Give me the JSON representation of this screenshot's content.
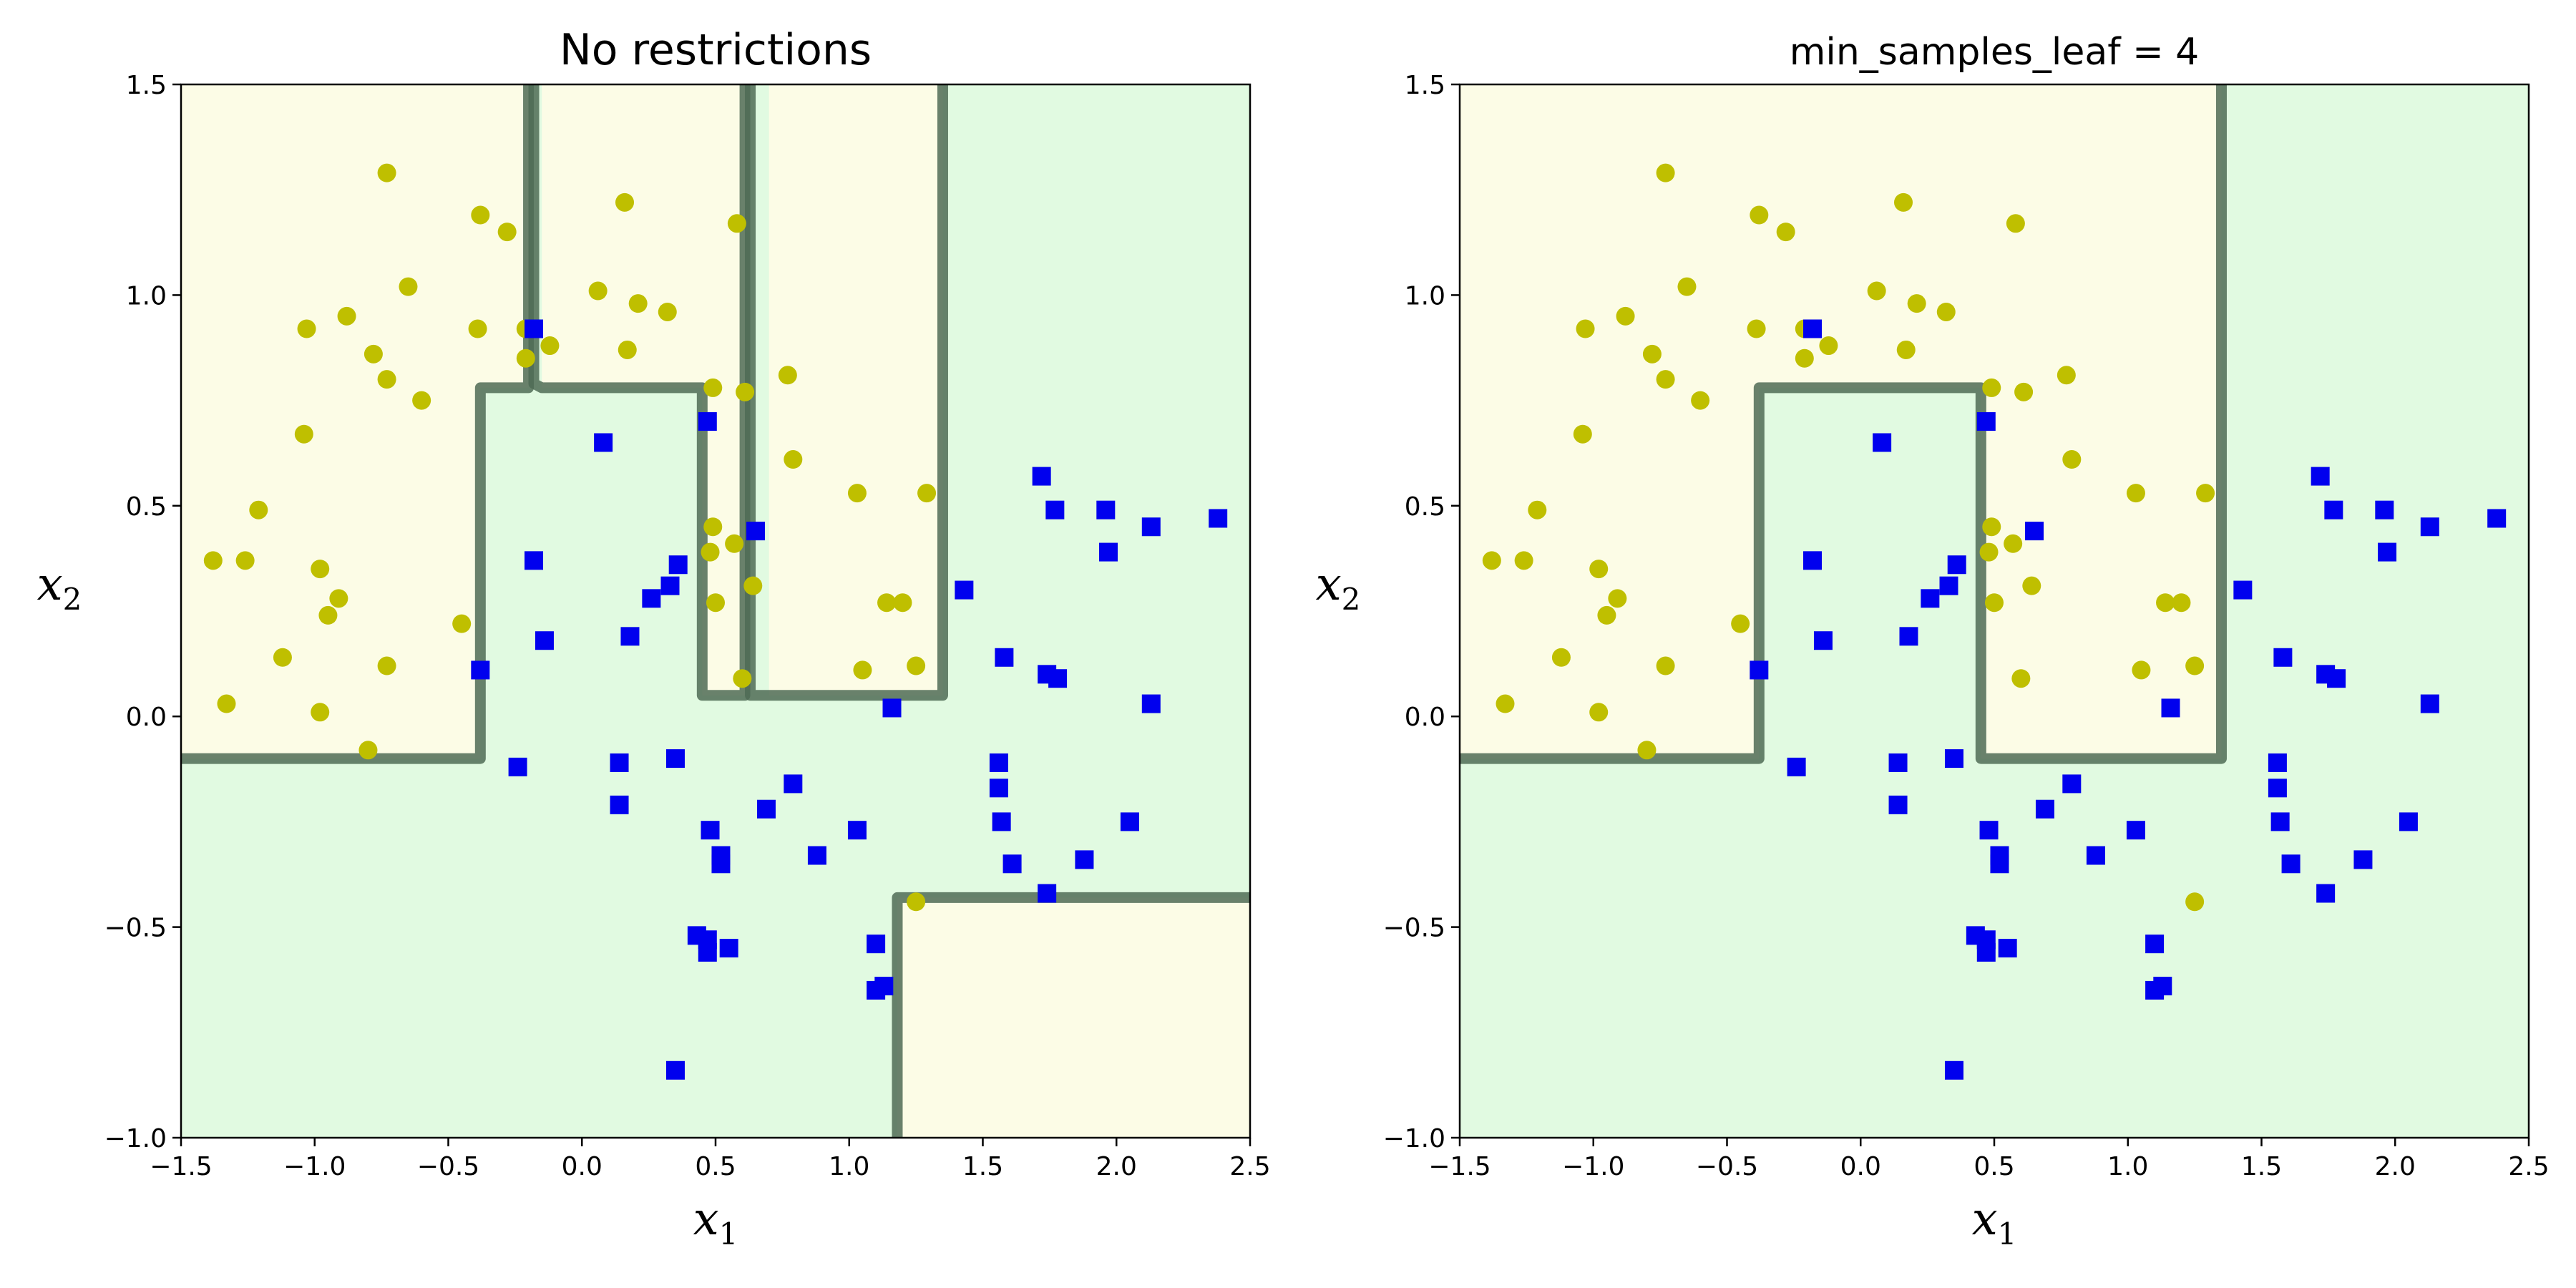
{
  "colors": {
    "region_class0": "#fcfce6",
    "region_class1": "#e1fae1",
    "boundary": "#4f6b55",
    "class0_marker": "#bfbf00",
    "class1_marker": "#0000ee",
    "axes": "#000000"
  },
  "chart_data": [
    {
      "type": "scatter",
      "title": "No restrictions",
      "xlabel": "x1",
      "ylabel": "x2",
      "xlim": [
        -1.5,
        2.5
      ],
      "ylim": [
        -1.0,
        1.5
      ],
      "xticks": [
        "−1.5",
        "−1.0",
        "−0.5",
        "0.0",
        "0.5",
        "1.0",
        "1.5",
        "2.0",
        "2.5"
      ],
      "yticks": [
        "−1.0",
        "−0.5",
        "0.0",
        "0.5",
        "1.0",
        "1.5"
      ],
      "grid": false,
      "decision_regions_class0": [
        [
          [
            -1.5,
            -0.1
          ],
          [
            -0.38,
            -0.1
          ],
          [
            -0.38,
            0.78
          ],
          [
            -0.2,
            0.78
          ],
          [
            -0.2,
            1.5
          ],
          [
            -1.5,
            1.5
          ]
        ],
        [
          [
            -0.15,
            0.78
          ],
          [
            0.45,
            0.78
          ],
          [
            0.45,
            0.05
          ],
          [
            0.61,
            0.05
          ],
          [
            0.61,
            1.5
          ],
          [
            -0.15,
            1.5
          ]
        ],
        [
          [
            0.7,
            0.05
          ],
          [
            1.35,
            0.05
          ],
          [
            1.35,
            1.5
          ],
          [
            0.7,
            1.5
          ]
        ],
        [
          [
            1.18,
            -1.0
          ],
          [
            1.18,
            -0.43
          ],
          [
            2.5,
            -0.43
          ],
          [
            2.5,
            -1.0
          ]
        ]
      ],
      "decision_boundaries": [
        [
          [
            -1.5,
            -0.1
          ],
          [
            -0.38,
            -0.1
          ],
          [
            -0.38,
            0.78
          ],
          [
            -0.2,
            0.78
          ],
          [
            -0.2,
            1.5
          ]
        ],
        [
          [
            -0.18,
            1.5
          ],
          [
            -0.18,
            0.79
          ],
          [
            -0.15,
            0.78
          ],
          [
            0.45,
            0.78
          ],
          [
            0.45,
            0.05
          ],
          [
            0.61,
            0.05
          ],
          [
            0.61,
            1.5
          ]
        ],
        [
          [
            0.63,
            1.5
          ],
          [
            0.63,
            0.05
          ],
          [
            1.35,
            0.05
          ],
          [
            1.35,
            1.5
          ]
        ],
        [
          [
            1.18,
            -1.0
          ],
          [
            1.18,
            -0.43
          ],
          [
            2.5,
            -0.43
          ]
        ]
      ],
      "series": [
        {
          "marker": "circle",
          "points": [
            [
              -0.73,
              1.29
            ],
            [
              -0.38,
              1.19
            ],
            [
              -0.28,
              1.15
            ],
            [
              -0.65,
              1.02
            ],
            [
              -0.88,
              0.95
            ],
            [
              -1.03,
              0.92
            ],
            [
              -0.39,
              0.92
            ],
            [
              -0.21,
              0.92
            ],
            [
              -0.78,
              0.86
            ],
            [
              -0.73,
              0.8
            ],
            [
              -0.6,
              0.75
            ],
            [
              -1.04,
              0.67
            ],
            [
              -1.21,
              0.49
            ],
            [
              -1.38,
              0.37
            ],
            [
              -1.26,
              0.37
            ],
            [
              -0.98,
              0.35
            ],
            [
              -0.91,
              0.28
            ],
            [
              -0.95,
              0.24
            ],
            [
              -0.45,
              0.22
            ],
            [
              -1.12,
              0.14
            ],
            [
              -0.73,
              0.12
            ],
            [
              -1.33,
              0.03
            ],
            [
              -0.98,
              0.01
            ],
            [
              -0.8,
              -0.08
            ],
            [
              -0.21,
              0.85
            ],
            [
              -0.12,
              0.88
            ],
            [
              0.06,
              1.01
            ],
            [
              0.16,
              1.22
            ],
            [
              0.21,
              0.98
            ],
            [
              0.32,
              0.96
            ],
            [
              0.17,
              0.87
            ],
            [
              0.58,
              1.17
            ],
            [
              0.49,
              0.78
            ],
            [
              0.61,
              0.77
            ],
            [
              0.77,
              0.81
            ],
            [
              0.79,
              0.61
            ],
            [
              0.49,
              0.45
            ],
            [
              0.57,
              0.41
            ],
            [
              0.48,
              0.39
            ],
            [
              0.64,
              0.31
            ],
            [
              0.5,
              0.27
            ],
            [
              0.6,
              0.09
            ],
            [
              1.03,
              0.53
            ],
            [
              1.29,
              0.53
            ],
            [
              1.14,
              0.27
            ],
            [
              1.2,
              0.27
            ],
            [
              1.05,
              0.11
            ],
            [
              1.25,
              0.12
            ],
            [
              1.25,
              -0.44
            ]
          ]
        },
        {
          "marker": "square",
          "points": [
            [
              -0.18,
              0.92
            ],
            [
              0.08,
              0.65
            ],
            [
              0.47,
              0.7
            ],
            [
              -0.18,
              0.37
            ],
            [
              -0.14,
              0.18
            ],
            [
              0.18,
              0.19
            ],
            [
              0.26,
              0.28
            ],
            [
              0.33,
              0.31
            ],
            [
              0.36,
              0.36
            ],
            [
              0.65,
              0.44
            ],
            [
              1.43,
              0.3
            ],
            [
              1.58,
              0.14
            ],
            [
              1.72,
              0.57
            ],
            [
              1.77,
              0.49
            ],
            [
              1.96,
              0.49
            ],
            [
              1.97,
              0.39
            ],
            [
              2.13,
              0.45
            ],
            [
              2.38,
              0.47
            ],
            [
              -0.38,
              0.11
            ],
            [
              1.74,
              0.1
            ],
            [
              1.78,
              0.09
            ],
            [
              1.16,
              0.02
            ],
            [
              2.13,
              0.03
            ],
            [
              -0.24,
              -0.12
            ],
            [
              0.14,
              -0.11
            ],
            [
              0.35,
              -0.1
            ],
            [
              1.56,
              -0.11
            ],
            [
              1.56,
              -0.17
            ],
            [
              0.79,
              -0.16
            ],
            [
              0.14,
              -0.21
            ],
            [
              0.69,
              -0.22
            ],
            [
              1.57,
              -0.25
            ],
            [
              2.05,
              -0.25
            ],
            [
              0.48,
              -0.27
            ],
            [
              1.03,
              -0.27
            ],
            [
              0.52,
              -0.33
            ],
            [
              0.52,
              -0.35
            ],
            [
              0.88,
              -0.33
            ],
            [
              1.61,
              -0.35
            ],
            [
              1.88,
              -0.34
            ],
            [
              1.74,
              -0.42
            ],
            [
              0.43,
              -0.52
            ],
            [
              0.47,
              -0.53
            ],
            [
              0.47,
              -0.56
            ],
            [
              0.55,
              -0.55
            ],
            [
              1.1,
              -0.54
            ],
            [
              1.1,
              -0.65
            ],
            [
              1.13,
              -0.64
            ],
            [
              0.35,
              -0.84
            ]
          ]
        }
      ]
    },
    {
      "type": "scatter",
      "title": "min_samples_leaf = 4",
      "xlabel": "x1",
      "ylabel": "x2",
      "xlim": [
        -1.5,
        2.5
      ],
      "ylim": [
        -1.0,
        1.5
      ],
      "xticks": [
        "−1.5",
        "−1.0",
        "−0.5",
        "0.0",
        "0.5",
        "1.0",
        "1.5",
        "2.0",
        "2.5"
      ],
      "yticks": [
        "−1.0",
        "−0.5",
        "0.0",
        "0.5",
        "1.0",
        "1.5"
      ],
      "grid": false,
      "decision_regions_class0": [
        [
          [
            -1.5,
            -0.1
          ],
          [
            -0.38,
            -0.1
          ],
          [
            -0.38,
            0.78
          ],
          [
            0.45,
            0.78
          ],
          [
            0.45,
            -0.1
          ],
          [
            1.35,
            -0.1
          ],
          [
            1.35,
            1.5
          ],
          [
            -1.5,
            1.5
          ]
        ]
      ],
      "decision_boundaries": [
        [
          [
            -1.5,
            -0.1
          ],
          [
            -0.38,
            -0.1
          ],
          [
            -0.38,
            0.78
          ],
          [
            0.45,
            0.78
          ],
          [
            0.45,
            -0.1
          ],
          [
            1.35,
            -0.1
          ],
          [
            1.35,
            1.5
          ]
        ]
      ],
      "series": [
        {
          "marker": "circle",
          "points": [
            [
              -0.73,
              1.29
            ],
            [
              -0.38,
              1.19
            ],
            [
              -0.28,
              1.15
            ],
            [
              -0.65,
              1.02
            ],
            [
              -0.88,
              0.95
            ],
            [
              -1.03,
              0.92
            ],
            [
              -0.39,
              0.92
            ],
            [
              -0.21,
              0.92
            ],
            [
              -0.78,
              0.86
            ],
            [
              -0.73,
              0.8
            ],
            [
              -0.6,
              0.75
            ],
            [
              -1.04,
              0.67
            ],
            [
              -1.21,
              0.49
            ],
            [
              -1.38,
              0.37
            ],
            [
              -1.26,
              0.37
            ],
            [
              -0.98,
              0.35
            ],
            [
              -0.91,
              0.28
            ],
            [
              -0.95,
              0.24
            ],
            [
              -0.45,
              0.22
            ],
            [
              -1.12,
              0.14
            ],
            [
              -0.73,
              0.12
            ],
            [
              -1.33,
              0.03
            ],
            [
              -0.98,
              0.01
            ],
            [
              -0.8,
              -0.08
            ],
            [
              -0.21,
              0.85
            ],
            [
              -0.12,
              0.88
            ],
            [
              0.06,
              1.01
            ],
            [
              0.16,
              1.22
            ],
            [
              0.21,
              0.98
            ],
            [
              0.32,
              0.96
            ],
            [
              0.17,
              0.87
            ],
            [
              0.58,
              1.17
            ],
            [
              0.49,
              0.78
            ],
            [
              0.61,
              0.77
            ],
            [
              0.77,
              0.81
            ],
            [
              0.79,
              0.61
            ],
            [
              0.49,
              0.45
            ],
            [
              0.57,
              0.41
            ],
            [
              0.48,
              0.39
            ],
            [
              0.64,
              0.31
            ],
            [
              0.5,
              0.27
            ],
            [
              0.6,
              0.09
            ],
            [
              1.03,
              0.53
            ],
            [
              1.29,
              0.53
            ],
            [
              1.14,
              0.27
            ],
            [
              1.2,
              0.27
            ],
            [
              1.05,
              0.11
            ],
            [
              1.25,
              0.12
            ],
            [
              1.25,
              -0.44
            ]
          ]
        },
        {
          "marker": "square",
          "points": [
            [
              -0.18,
              0.92
            ],
            [
              0.08,
              0.65
            ],
            [
              0.47,
              0.7
            ],
            [
              -0.18,
              0.37
            ],
            [
              -0.14,
              0.18
            ],
            [
              0.18,
              0.19
            ],
            [
              0.26,
              0.28
            ],
            [
              0.33,
              0.31
            ],
            [
              0.36,
              0.36
            ],
            [
              0.65,
              0.44
            ],
            [
              1.43,
              0.3
            ],
            [
              1.58,
              0.14
            ],
            [
              1.72,
              0.57
            ],
            [
              1.77,
              0.49
            ],
            [
              1.96,
              0.49
            ],
            [
              1.97,
              0.39
            ],
            [
              2.13,
              0.45
            ],
            [
              2.38,
              0.47
            ],
            [
              -0.38,
              0.11
            ],
            [
              1.74,
              0.1
            ],
            [
              1.78,
              0.09
            ],
            [
              1.16,
              0.02
            ],
            [
              2.13,
              0.03
            ],
            [
              -0.24,
              -0.12
            ],
            [
              0.14,
              -0.11
            ],
            [
              0.35,
              -0.1
            ],
            [
              1.56,
              -0.11
            ],
            [
              1.56,
              -0.17
            ],
            [
              0.79,
              -0.16
            ],
            [
              0.14,
              -0.21
            ],
            [
              0.69,
              -0.22
            ],
            [
              1.57,
              -0.25
            ],
            [
              2.05,
              -0.25
            ],
            [
              0.48,
              -0.27
            ],
            [
              1.03,
              -0.27
            ],
            [
              0.52,
              -0.33
            ],
            [
              0.52,
              -0.35
            ],
            [
              0.88,
              -0.33
            ],
            [
              1.61,
              -0.35
            ],
            [
              1.88,
              -0.34
            ],
            [
              1.74,
              -0.42
            ],
            [
              0.43,
              -0.52
            ],
            [
              0.47,
              -0.53
            ],
            [
              0.47,
              -0.56
            ],
            [
              0.55,
              -0.55
            ],
            [
              1.1,
              -0.54
            ],
            [
              1.1,
              -0.65
            ],
            [
              1.13,
              -0.64
            ],
            [
              0.35,
              -0.84
            ]
          ]
        }
      ]
    }
  ]
}
